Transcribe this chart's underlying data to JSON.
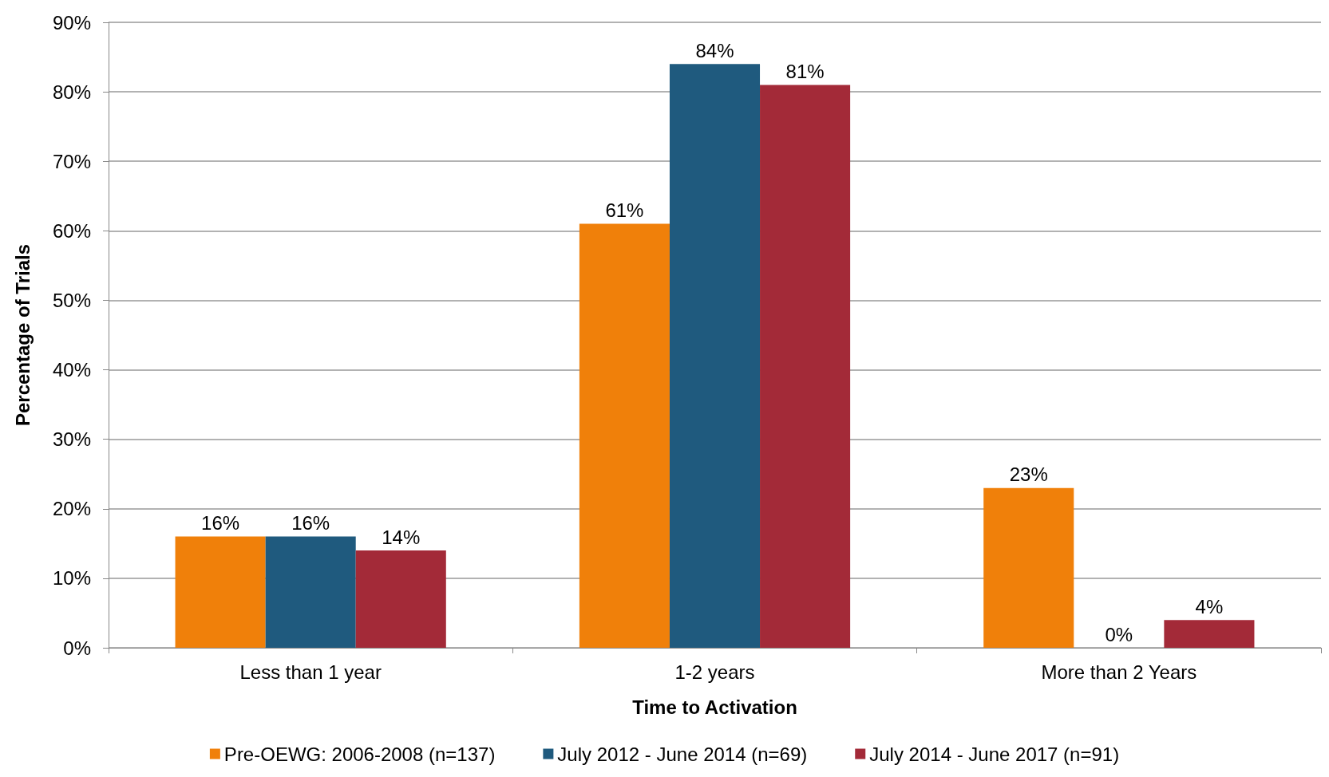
{
  "chart_data": {
    "type": "bar",
    "xlabel": "Time to Activation",
    "ylabel": "Percentage of Trials",
    "categories": [
      "Less than 1 year",
      "1-2 years",
      "More than 2 Years"
    ],
    "series": [
      {
        "name": "Pre-OEWG: 2006-2008 (n=137)",
        "color": "#f0800a",
        "values": [
          16,
          61,
          23
        ],
        "value_labels": [
          "16%",
          "61%",
          "23%"
        ]
      },
      {
        "name": "July 2012 - June 2014 (n=69)",
        "color": "#1f5a7e",
        "values": [
          16,
          84,
          0
        ],
        "value_labels": [
          "16%",
          "84%",
          "0%"
        ]
      },
      {
        "name": "July 2014 - June 2017 (n=91)",
        "color": "#a32a38",
        "values": [
          14,
          81,
          4
        ],
        "value_labels": [
          "14%",
          "81%",
          "4%"
        ]
      }
    ],
    "ylim": [
      0,
      90
    ],
    "yticks": [
      {
        "value": 0,
        "label": "0%"
      },
      {
        "value": 10,
        "label": "10%"
      },
      {
        "value": 20,
        "label": "20%"
      },
      {
        "value": 30,
        "label": "30%"
      },
      {
        "value": 40,
        "label": "40%"
      },
      {
        "value": 50,
        "label": "50%"
      },
      {
        "value": 60,
        "label": "60%"
      },
      {
        "value": 70,
        "label": "70%"
      },
      {
        "value": 80,
        "label": "80%"
      },
      {
        "value": 90,
        "label": "90%"
      }
    ],
    "grid": "y",
    "legend": "bottom"
  }
}
